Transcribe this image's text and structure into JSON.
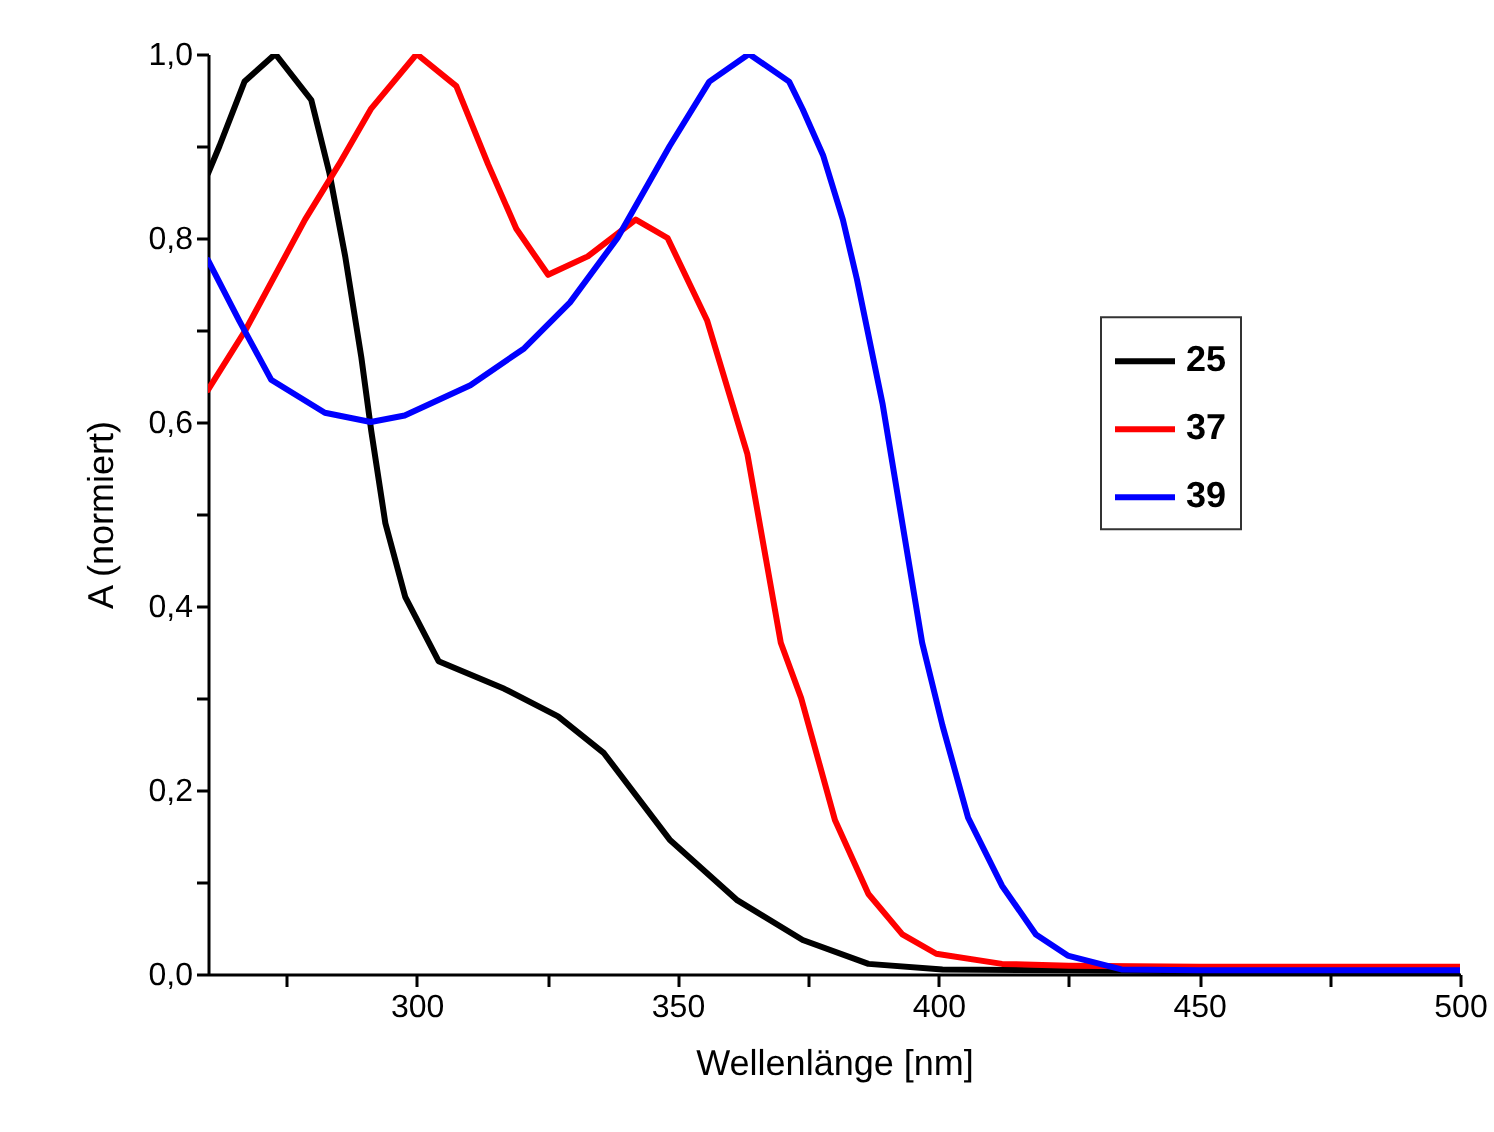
{
  "chart_data": {
    "type": "line",
    "xlabel": "Wellenlänge [nm]",
    "ylabel": "A (normiert)",
    "xlim": [
      260,
      500
    ],
    "ylim": [
      0,
      1
    ],
    "xticks": [
      {
        "value": 275,
        "label": null
      },
      300,
      {
        "value": 325,
        "label": null
      },
      350,
      {
        "value": 375,
        "label": null
      },
      400,
      {
        "value": 425,
        "label": null
      },
      450,
      {
        "value": 475,
        "label": null
      },
      500
    ],
    "yticks": [
      {
        "value": 0,
        "label": "0,0"
      },
      {
        "value": 0.1,
        "label": null
      },
      {
        "value": 0.2,
        "label": "0,2"
      },
      {
        "value": 0.3,
        "label": null
      },
      {
        "value": 0.4,
        "label": "0,4"
      },
      {
        "value": 0.5,
        "label": null
      },
      {
        "value": 0.6,
        "label": "0,6"
      },
      {
        "value": 0.7,
        "label": null
      },
      {
        "value": 0.8,
        "label": "0,8"
      },
      {
        "value": 0.9,
        "label": null
      },
      {
        "value": 1,
        "label": "1,0"
      }
    ],
    "grid": false,
    "legend": "right",
    "line_style": "solid",
    "marker": "none",
    "series": [
      {
        "name": "25",
        "color": "#000000",
        "x": [
          260,
          262.2,
          267,
          272.9,
          279.8,
          283.3,
          286.3,
          289.4,
          291.3,
          294,
          297.8,
          304.2,
          316.8,
          327.1,
          335.9,
          348.5,
          361.5,
          374,
          386.6,
          400.8,
          425,
          450,
          475,
          500
        ],
        "values": [
          0.87,
          0.9,
          0.97,
          1.0,
          0.95,
          0.87,
          0.78,
          0.67,
          0.59,
          0.49,
          0.41,
          0.34,
          0.31,
          0.28,
          0.24,
          0.146,
          0.08,
          0.037,
          0.011,
          0.005,
          0.004,
          0.003,
          0.003,
          0.003
        ]
      },
      {
        "name": "37",
        "color": "#ff0000",
        "x": [
          260,
          267.2,
          278.6,
          285.1,
          291.2,
          300,
          307.6,
          313.7,
          319.1,
          325.2,
          332.8,
          342,
          348.1,
          355.7,
          363.4,
          369.8,
          373.7,
          380.2,
          386.6,
          393.1,
          399.6,
          412.2,
          425,
          450,
          475,
          500
        ],
        "values": [
          0.635,
          0.7,
          0.82,
          0.88,
          0.94,
          1.0,
          0.965,
          0.88,
          0.81,
          0.76,
          0.78,
          0.82,
          0.8,
          0.71,
          0.565,
          0.36,
          0.3,
          0.167,
          0.087,
          0.043,
          0.022,
          0.011,
          0.009,
          0.008,
          0.008,
          0.008
        ]
      },
      {
        "name": "39",
        "color": "#0000ff",
        "x": [
          260,
          266,
          272.1,
          282.4,
          291.2,
          297.7,
          310.3,
          320.6,
          329.4,
          338.5,
          348.5,
          356.1,
          363.7,
          371.4,
          374,
          377.9,
          381.7,
          384.4,
          389.3,
          393.1,
          396.9,
          400.8,
          405.7,
          412.2,
          418.7,
          424.8,
          435.1,
          450,
          475,
          500
        ],
        "values": [
          0.776,
          0.71,
          0.646,
          0.61,
          0.6,
          0.607,
          0.64,
          0.68,
          0.73,
          0.8,
          0.9,
          0.97,
          1.0,
          0.97,
          0.94,
          0.89,
          0.82,
          0.755,
          0.62,
          0.49,
          0.36,
          0.27,
          0.17,
          0.096,
          0.043,
          0.02,
          0.005,
          0.004,
          0.004,
          0.004
        ]
      }
    ]
  }
}
